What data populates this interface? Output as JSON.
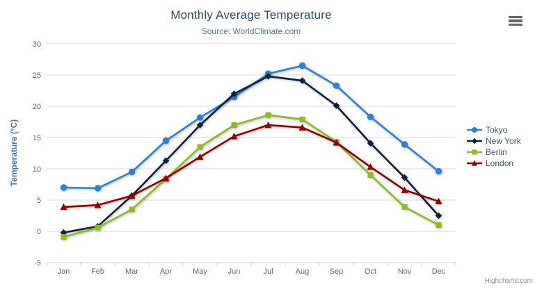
{
  "chart_data": {
    "type": "line",
    "title": "Monthly Average Temperature",
    "subtitle": "Source: WorldClimate.com",
    "xlabel": "",
    "ylabel": "Temperature (°C)",
    "ylim": [
      -5,
      30
    ],
    "yticks": [
      -5,
      0,
      5,
      10,
      15,
      20,
      25,
      30
    ],
    "grid": true,
    "legend_position": "right-middle",
    "categories": [
      "Jan",
      "Feb",
      "Mar",
      "Apr",
      "May",
      "Jun",
      "Jul",
      "Aug",
      "Sep",
      "Oct",
      "Nov",
      "Dec"
    ],
    "series": [
      {
        "name": "Tokyo",
        "color": "#2f7ed8",
        "marker": "circle",
        "values": [
          7.0,
          6.9,
          9.5,
          14.5,
          18.2,
          21.5,
          25.2,
          26.5,
          23.3,
          18.3,
          13.9,
          9.6
        ]
      },
      {
        "name": "New York",
        "color": "#0d233a",
        "marker": "diamond",
        "values": [
          -0.2,
          0.8,
          5.7,
          11.3,
          17.0,
          22.0,
          24.8,
          24.1,
          20.1,
          14.1,
          8.6,
          2.5
        ]
      },
      {
        "name": "Berlin",
        "color": "#8bbc21",
        "marker": "square",
        "values": [
          -0.9,
          0.6,
          3.5,
          8.4,
          13.5,
          17.0,
          18.6,
          17.9,
          14.3,
          9.0,
          3.9,
          1.0
        ]
      },
      {
        "name": "London",
        "color": "#910000",
        "marker": "triangle",
        "values": [
          3.9,
          4.2,
          5.7,
          8.5,
          11.9,
          15.2,
          17.0,
          16.6,
          14.2,
          10.3,
          6.6,
          4.8
        ]
      }
    ]
  },
  "export_menu": {
    "icon": "hamburger-icon"
  },
  "credit": {
    "label": "Highcharts.com"
  },
  "colors": {
    "title_text": "#274b6d",
    "subtitle_text": "#4d759e",
    "axis_title_text": "#4572a7",
    "axis_label_text": "#666666",
    "gridline": "#d8d8d8",
    "axis_line": "#c0d0e0",
    "legend_text": "#3e576f",
    "credit_text": "#909090",
    "hamburger": "#666666"
  }
}
